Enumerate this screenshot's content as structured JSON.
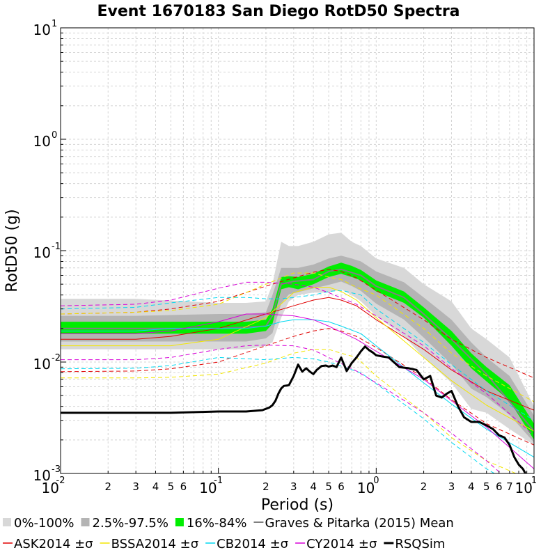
{
  "chart_data": {
    "type": "line",
    "title": "Event 1670183 San Diego RotD50 Spectra",
    "xlabel": "Period (s)",
    "ylabel": "RotD50 (g)",
    "x_scale": "log",
    "y_scale": "log",
    "xlim": [
      0.01,
      10
    ],
    "ylim": [
      0.001,
      10
    ],
    "x_major_ticks": [
      {
        "value": 0.01,
        "base": "10",
        "exp": "-2"
      },
      {
        "value": 0.1,
        "base": "10",
        "exp": "-1"
      },
      {
        "value": 1,
        "base": "10",
        "exp": "0"
      },
      {
        "value": 10,
        "base": "10",
        "exp": "1"
      }
    ],
    "x_minor_labels": [
      "2",
      "3",
      "4",
      "5",
      "6"
    ],
    "x_minor_labels_decade2": [
      "2",
      "3",
      "4",
      "5",
      "6",
      "7"
    ],
    "y_major_ticks": [
      {
        "value": 0.001,
        "base": "10",
        "exp": "-3"
      },
      {
        "value": 0.01,
        "base": "10",
        "exp": "-2"
      },
      {
        "value": 0.1,
        "base": "10",
        "exp": "-1"
      },
      {
        "value": 1,
        "base": "10",
        "exp": "0"
      },
      {
        "value": 10,
        "base": "10",
        "exp": "1"
      }
    ],
    "grid": true,
    "legend_position": "bottom",
    "legend": [
      {
        "label": "0%-100%",
        "type": "box",
        "color": "#d8d8d8"
      },
      {
        "label": "2.5%-97.5%",
        "type": "box",
        "color": "#b4b4b4"
      },
      {
        "label": "16%-84%",
        "type": "box",
        "color": "#00ee00"
      },
      {
        "label": "Graves & Pitarka (2015) Mean",
        "type": "line",
        "color": "#808080"
      },
      {
        "label": "ASK2014 ±σ",
        "type": "line",
        "color": "#e00000"
      },
      {
        "label": "BSSA2014 ±σ",
        "type": "line",
        "color": "#f2e600"
      },
      {
        "label": "CB2014 ±σ",
        "type": "line",
        "color": "#00d8f0"
      },
      {
        "label": "CY2014 ±σ",
        "type": "line",
        "color": "#d800d8"
      },
      {
        "label": "RSQSim",
        "type": "line",
        "color": "#000000"
      }
    ],
    "bands": [
      {
        "name": "0%-100%",
        "color": "#d8d8d8",
        "x": [
          0.01,
          0.03,
          0.1,
          0.15,
          0.2,
          0.22,
          0.25,
          0.28,
          0.32,
          0.4,
          0.5,
          0.6,
          0.7,
          0.8,
          1.0,
          1.5,
          2.0,
          3.0,
          4.0,
          5.0,
          7.0,
          10.0
        ],
        "upper": [
          0.037,
          0.037,
          0.034,
          0.034,
          0.035,
          0.05,
          0.12,
          0.11,
          0.11,
          0.12,
          0.14,
          0.145,
          0.12,
          0.11,
          0.085,
          0.07,
          0.05,
          0.035,
          0.02,
          0.016,
          0.011,
          0.004
        ],
        "lower": [
          0.013,
          0.013,
          0.013,
          0.013,
          0.014,
          0.015,
          0.025,
          0.035,
          0.04,
          0.042,
          0.042,
          0.045,
          0.04,
          0.035,
          0.026,
          0.017,
          0.011,
          0.0065,
          0.0038,
          0.0035,
          0.0025,
          0.0018
        ]
      },
      {
        "name": "2.5%-97.5%",
        "color": "#b4b4b4",
        "x": [
          0.01,
          0.03,
          0.1,
          0.15,
          0.2,
          0.22,
          0.25,
          0.28,
          0.32,
          0.4,
          0.5,
          0.6,
          0.7,
          0.8,
          1.0,
          1.5,
          2.0,
          3.0,
          4.0,
          5.0,
          7.0,
          10.0
        ],
        "upper": [
          0.026,
          0.026,
          0.027,
          0.027,
          0.028,
          0.04,
          0.07,
          0.07,
          0.07,
          0.075,
          0.085,
          0.09,
          0.085,
          0.08,
          0.065,
          0.052,
          0.038,
          0.024,
          0.015,
          0.011,
          0.0075,
          0.0033
        ]
      },
      {
        "name": "16%-84%",
        "color": "#00ee00",
        "x": [
          0.01,
          0.03,
          0.1,
          0.15,
          0.2,
          0.22,
          0.25,
          0.28,
          0.32,
          0.4,
          0.5,
          0.6,
          0.7,
          0.8,
          1.0,
          1.5,
          2.0,
          3.0,
          4.0,
          5.0,
          7.0,
          10.0
        ],
        "upper": [
          0.023,
          0.023,
          0.023,
          0.023,
          0.024,
          0.03,
          0.058,
          0.059,
          0.058,
          0.062,
          0.072,
          0.078,
          0.073,
          0.067,
          0.054,
          0.043,
          0.031,
          0.019,
          0.012,
          0.009,
          0.0062,
          0.0028
        ],
        "lower": [
          0.018,
          0.018,
          0.018,
          0.018,
          0.019,
          0.022,
          0.045,
          0.047,
          0.045,
          0.05,
          0.058,
          0.062,
          0.058,
          0.054,
          0.043,
          0.034,
          0.025,
          0.014,
          0.0088,
          0.0067,
          0.0045,
          0.002
        ]
      }
    ],
    "series": [
      {
        "name": "Graves & Pitarka (2015) Mean",
        "color": "#808080",
        "width": 2,
        "dash": false,
        "x": [
          0.01,
          0.1,
          0.2,
          0.22,
          0.25,
          0.3,
          0.4,
          0.5,
          0.6,
          0.8,
          1.0,
          1.5,
          2.0,
          3.0,
          5.0,
          10.0
        ],
        "y": [
          0.02,
          0.02,
          0.021,
          0.026,
          0.05,
          0.053,
          0.055,
          0.065,
          0.068,
          0.06,
          0.048,
          0.038,
          0.027,
          0.016,
          0.0078,
          0.0024
        ]
      },
      {
        "name": "ASK2014",
        "color": "#e00000",
        "width": 1,
        "dash": false,
        "x": [
          0.01,
          0.03,
          0.05,
          0.1,
          0.2,
          0.3,
          0.4,
          0.5,
          0.6,
          0.75,
          1.0,
          2.0,
          3.0,
          5.0,
          10.0
        ],
        "y": [
          0.016,
          0.016,
          0.017,
          0.02,
          0.027,
          0.032,
          0.036,
          0.038,
          0.036,
          0.032,
          0.024,
          0.013,
          0.0085,
          0.0055,
          0.0037
        ]
      },
      {
        "name": "ASK2014 +σ",
        "color": "#e00000",
        "width": 1,
        "dash": true,
        "x": [
          0.01,
          0.03,
          0.05,
          0.1,
          0.2,
          0.3,
          0.4,
          0.5,
          0.6,
          0.75,
          1.0,
          2.0,
          3.0,
          5.0,
          10.0
        ],
        "y": [
          0.027,
          0.028,
          0.03,
          0.035,
          0.048,
          0.057,
          0.064,
          0.068,
          0.065,
          0.057,
          0.044,
          0.024,
          0.016,
          0.011,
          0.0072
        ]
      },
      {
        "name": "ASK2014 -σ",
        "color": "#e00000",
        "width": 1,
        "dash": true,
        "x": [
          0.01,
          0.03,
          0.05,
          0.1,
          0.2,
          0.3,
          0.4,
          0.5,
          0.6,
          0.75,
          1.0,
          2.0,
          3.0,
          5.0,
          10.0
        ],
        "y": [
          0.0082,
          0.0083,
          0.0087,
          0.01,
          0.014,
          0.017,
          0.019,
          0.02,
          0.019,
          0.017,
          0.0135,
          0.0072,
          0.0046,
          0.0028,
          0.0018
        ]
      },
      {
        "name": "BSSA2014",
        "color": "#f2e600",
        "width": 1,
        "dash": false,
        "x": [
          0.01,
          0.03,
          0.05,
          0.1,
          0.2,
          0.3,
          0.4,
          0.5,
          0.6,
          0.75,
          1.0,
          2.0,
          3.0,
          5.0,
          10.0
        ],
        "y": [
          0.014,
          0.014,
          0.014,
          0.016,
          0.025,
          0.042,
          0.047,
          0.047,
          0.043,
          0.036,
          0.025,
          0.011,
          0.0068,
          0.0041,
          0.0024
        ]
      },
      {
        "name": "BSSA2014 +σ",
        "color": "#f2e600",
        "width": 1,
        "dash": true,
        "x": [
          0.01,
          0.03,
          0.05,
          0.1,
          0.2,
          0.3,
          0.4,
          0.5,
          0.6,
          0.75,
          1.0,
          2.0,
          3.0,
          5.0,
          10.0
        ],
        "y": [
          0.027,
          0.028,
          0.029,
          0.033,
          0.05,
          0.063,
          0.063,
          0.058,
          0.055,
          0.047,
          0.04,
          0.02,
          0.012,
          0.0075,
          0.0044
        ]
      },
      {
        "name": "BSSA2014 -σ",
        "color": "#f2e600",
        "width": 1,
        "dash": true,
        "x": [
          0.01,
          0.03,
          0.05,
          0.1,
          0.2,
          0.3,
          0.4,
          0.5,
          0.6,
          0.75,
          1.0,
          2.0,
          3.0,
          5.0,
          10.0
        ],
        "y": [
          0.0072,
          0.0072,
          0.0073,
          0.0078,
          0.0098,
          0.012,
          0.013,
          0.013,
          0.012,
          0.011,
          0.0075,
          0.0035,
          0.0021,
          0.0013,
          0.00085
        ]
      },
      {
        "name": "CB2014",
        "color": "#00d8f0",
        "width": 1,
        "dash": false,
        "x": [
          0.01,
          0.03,
          0.05,
          0.1,
          0.15,
          0.2,
          0.25,
          0.3,
          0.4,
          0.5,
          0.6,
          0.8,
          1.0,
          2.0,
          3.0,
          5.0,
          10.0
        ],
        "y": [
          0.019,
          0.019,
          0.02,
          0.02,
          0.02,
          0.021,
          0.023,
          0.024,
          0.024,
          0.023,
          0.021,
          0.018,
          0.014,
          0.0065,
          0.0042,
          0.0025,
          0.0014
        ]
      },
      {
        "name": "CB2014 +σ",
        "color": "#00d8f0",
        "width": 1,
        "dash": true,
        "x": [
          0.01,
          0.03,
          0.05,
          0.1,
          0.15,
          0.2,
          0.25,
          0.3,
          0.4,
          0.5,
          0.6,
          0.8,
          1.0,
          2.0,
          3.0,
          5.0,
          10.0
        ],
        "y": [
          0.03,
          0.031,
          0.034,
          0.038,
          0.038,
          0.037,
          0.037,
          0.038,
          0.04,
          0.043,
          0.044,
          0.04,
          0.03,
          0.015,
          0.0095,
          0.0055,
          0.003
        ]
      },
      {
        "name": "CB2014 -σ",
        "color": "#00d8f0",
        "width": 1,
        "dash": true,
        "x": [
          0.01,
          0.03,
          0.05,
          0.1,
          0.15,
          0.2,
          0.25,
          0.3,
          0.4,
          0.5,
          0.6,
          0.8,
          1.0,
          2.0,
          3.0,
          5.0,
          10.0
        ],
        "y": [
          0.0087,
          0.0088,
          0.0093,
          0.011,
          0.0107,
          0.0105,
          0.0108,
          0.011,
          0.0107,
          0.01,
          0.0092,
          0.008,
          0.0064,
          0.0031,
          0.0019,
          0.0011,
          0.00062
        ]
      },
      {
        "name": "CY2014",
        "color": "#d800d8",
        "width": 1,
        "dash": false,
        "x": [
          0.01,
          0.03,
          0.05,
          0.1,
          0.15,
          0.2,
          0.3,
          0.4,
          0.5,
          0.75,
          1.0,
          2.0,
          3.0,
          5.0,
          10.0
        ],
        "y": [
          0.018,
          0.018,
          0.019,
          0.023,
          0.027,
          0.027,
          0.026,
          0.024,
          0.021,
          0.016,
          0.0125,
          0.007,
          0.0045,
          0.0026,
          0.0011
        ]
      },
      {
        "name": "CY2014 +σ",
        "color": "#d800d8",
        "width": 1,
        "dash": true,
        "x": [
          0.01,
          0.03,
          0.05,
          0.1,
          0.15,
          0.2,
          0.3,
          0.4,
          0.5,
          0.75,
          1.0,
          2.0,
          3.0,
          5.0,
          10.0
        ],
        "y": [
          0.032,
          0.033,
          0.036,
          0.046,
          0.052,
          0.052,
          0.05,
          0.047,
          0.042,
          0.033,
          0.026,
          0.014,
          0.0088,
          0.0052,
          0.0022
        ]
      },
      {
        "name": "CY2014 -σ",
        "color": "#d800d8",
        "width": 1,
        "dash": true,
        "x": [
          0.01,
          0.03,
          0.05,
          0.1,
          0.15,
          0.2,
          0.3,
          0.4,
          0.5,
          0.75,
          1.0,
          2.0,
          3.0,
          5.0,
          10.0
        ],
        "y": [
          0.0105,
          0.0105,
          0.011,
          0.013,
          0.014,
          0.0142,
          0.014,
          0.0128,
          0.011,
          0.0083,
          0.0065,
          0.0035,
          0.0023,
          0.0013,
          0.00055
        ]
      },
      {
        "name": "RSQSim",
        "color": "#000000",
        "width": 3,
        "dash": false,
        "x": [
          0.01,
          0.05,
          0.1,
          0.15,
          0.19,
          0.2,
          0.21,
          0.22,
          0.23,
          0.24,
          0.25,
          0.26,
          0.28,
          0.3,
          0.32,
          0.34,
          0.36,
          0.38,
          0.4,
          0.42,
          0.45,
          0.48,
          0.5,
          0.53,
          0.56,
          0.6,
          0.65,
          0.7,
          0.75,
          0.8,
          0.85,
          0.9,
          0.95,
          1.0,
          1.1,
          1.2,
          1.4,
          1.6,
          1.8,
          2.0,
          2.2,
          2.4,
          2.6,
          2.8,
          3.0,
          3.3,
          3.6,
          4.0,
          4.5,
          5.0,
          5.5,
          6.0,
          6.5,
          7.0,
          7.5,
          8.0,
          8.5,
          9.0,
          10.0
        ],
        "y": [
          0.0035,
          0.0035,
          0.0036,
          0.0036,
          0.0037,
          0.0038,
          0.0039,
          0.0041,
          0.0045,
          0.0052,
          0.0058,
          0.0061,
          0.0062,
          0.0075,
          0.0095,
          0.0082,
          0.0088,
          0.0082,
          0.0078,
          0.0085,
          0.0092,
          0.0093,
          0.0091,
          0.0093,
          0.009,
          0.011,
          0.0083,
          0.0098,
          0.011,
          0.0125,
          0.0138,
          0.0128,
          0.0122,
          0.0115,
          0.0112,
          0.011,
          0.009,
          0.0088,
          0.0085,
          0.007,
          0.0075,
          0.005,
          0.0048,
          0.0052,
          0.0055,
          0.004,
          0.0032,
          0.0029,
          0.0029,
          0.0027,
          0.0025,
          0.0022,
          0.0021,
          0.0018,
          0.0014,
          0.0012,
          0.0011,
          0.00095,
          0.0009
        ]
      }
    ]
  }
}
